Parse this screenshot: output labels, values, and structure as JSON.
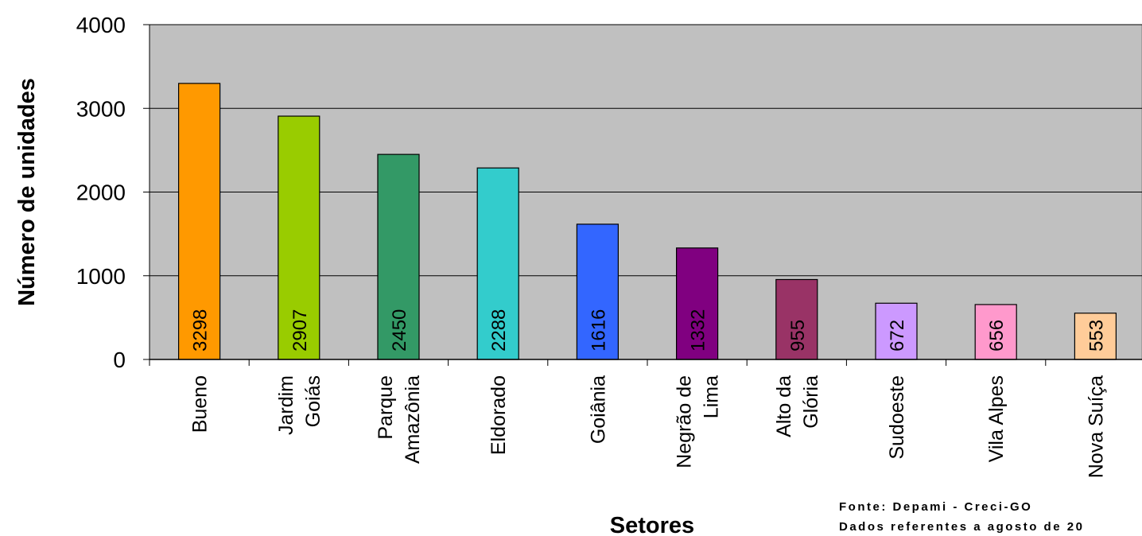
{
  "chart_data": {
    "type": "bar",
    "categories": [
      [
        "Bueno"
      ],
      [
        "Jardim",
        "Goiás"
      ],
      [
        "Parque",
        "Amazônia"
      ],
      [
        "Eldorado"
      ],
      [
        "Goiânia"
      ],
      [
        "Negrão de",
        "Lima"
      ],
      [
        "Alto da",
        "Glória"
      ],
      [
        "Sudoeste"
      ],
      [
        "Vila Alpes"
      ],
      [
        "Nova Suíça"
      ]
    ],
    "values": [
      3298,
      2907,
      2450,
      2288,
      1616,
      1332,
      955,
      672,
      656,
      553
    ],
    "data_labels": [
      "3298",
      "2907",
      "2450",
      "2288",
      "1616",
      "1332",
      "955",
      "672",
      "656",
      "553"
    ],
    "colors": [
      "#ff9900",
      "#99cc00",
      "#339966",
      "#33cccc",
      "#3366ff",
      "#800080",
      "#993366",
      "#cc99ff",
      "#ff99cc",
      "#ffcc99"
    ],
    "yticks": [
      "0",
      "1000",
      "2000",
      "3000",
      "4000"
    ],
    "ylim": [
      0,
      4000
    ],
    "xlabel": "Setores",
    "ylabel": "Número de unidades",
    "grid": true,
    "plot_background": "#c0c0c0"
  },
  "source_note": {
    "line1": "Fonte: Depami - Creci-GO",
    "line2": "Dados referentes a agosto de 20"
  }
}
